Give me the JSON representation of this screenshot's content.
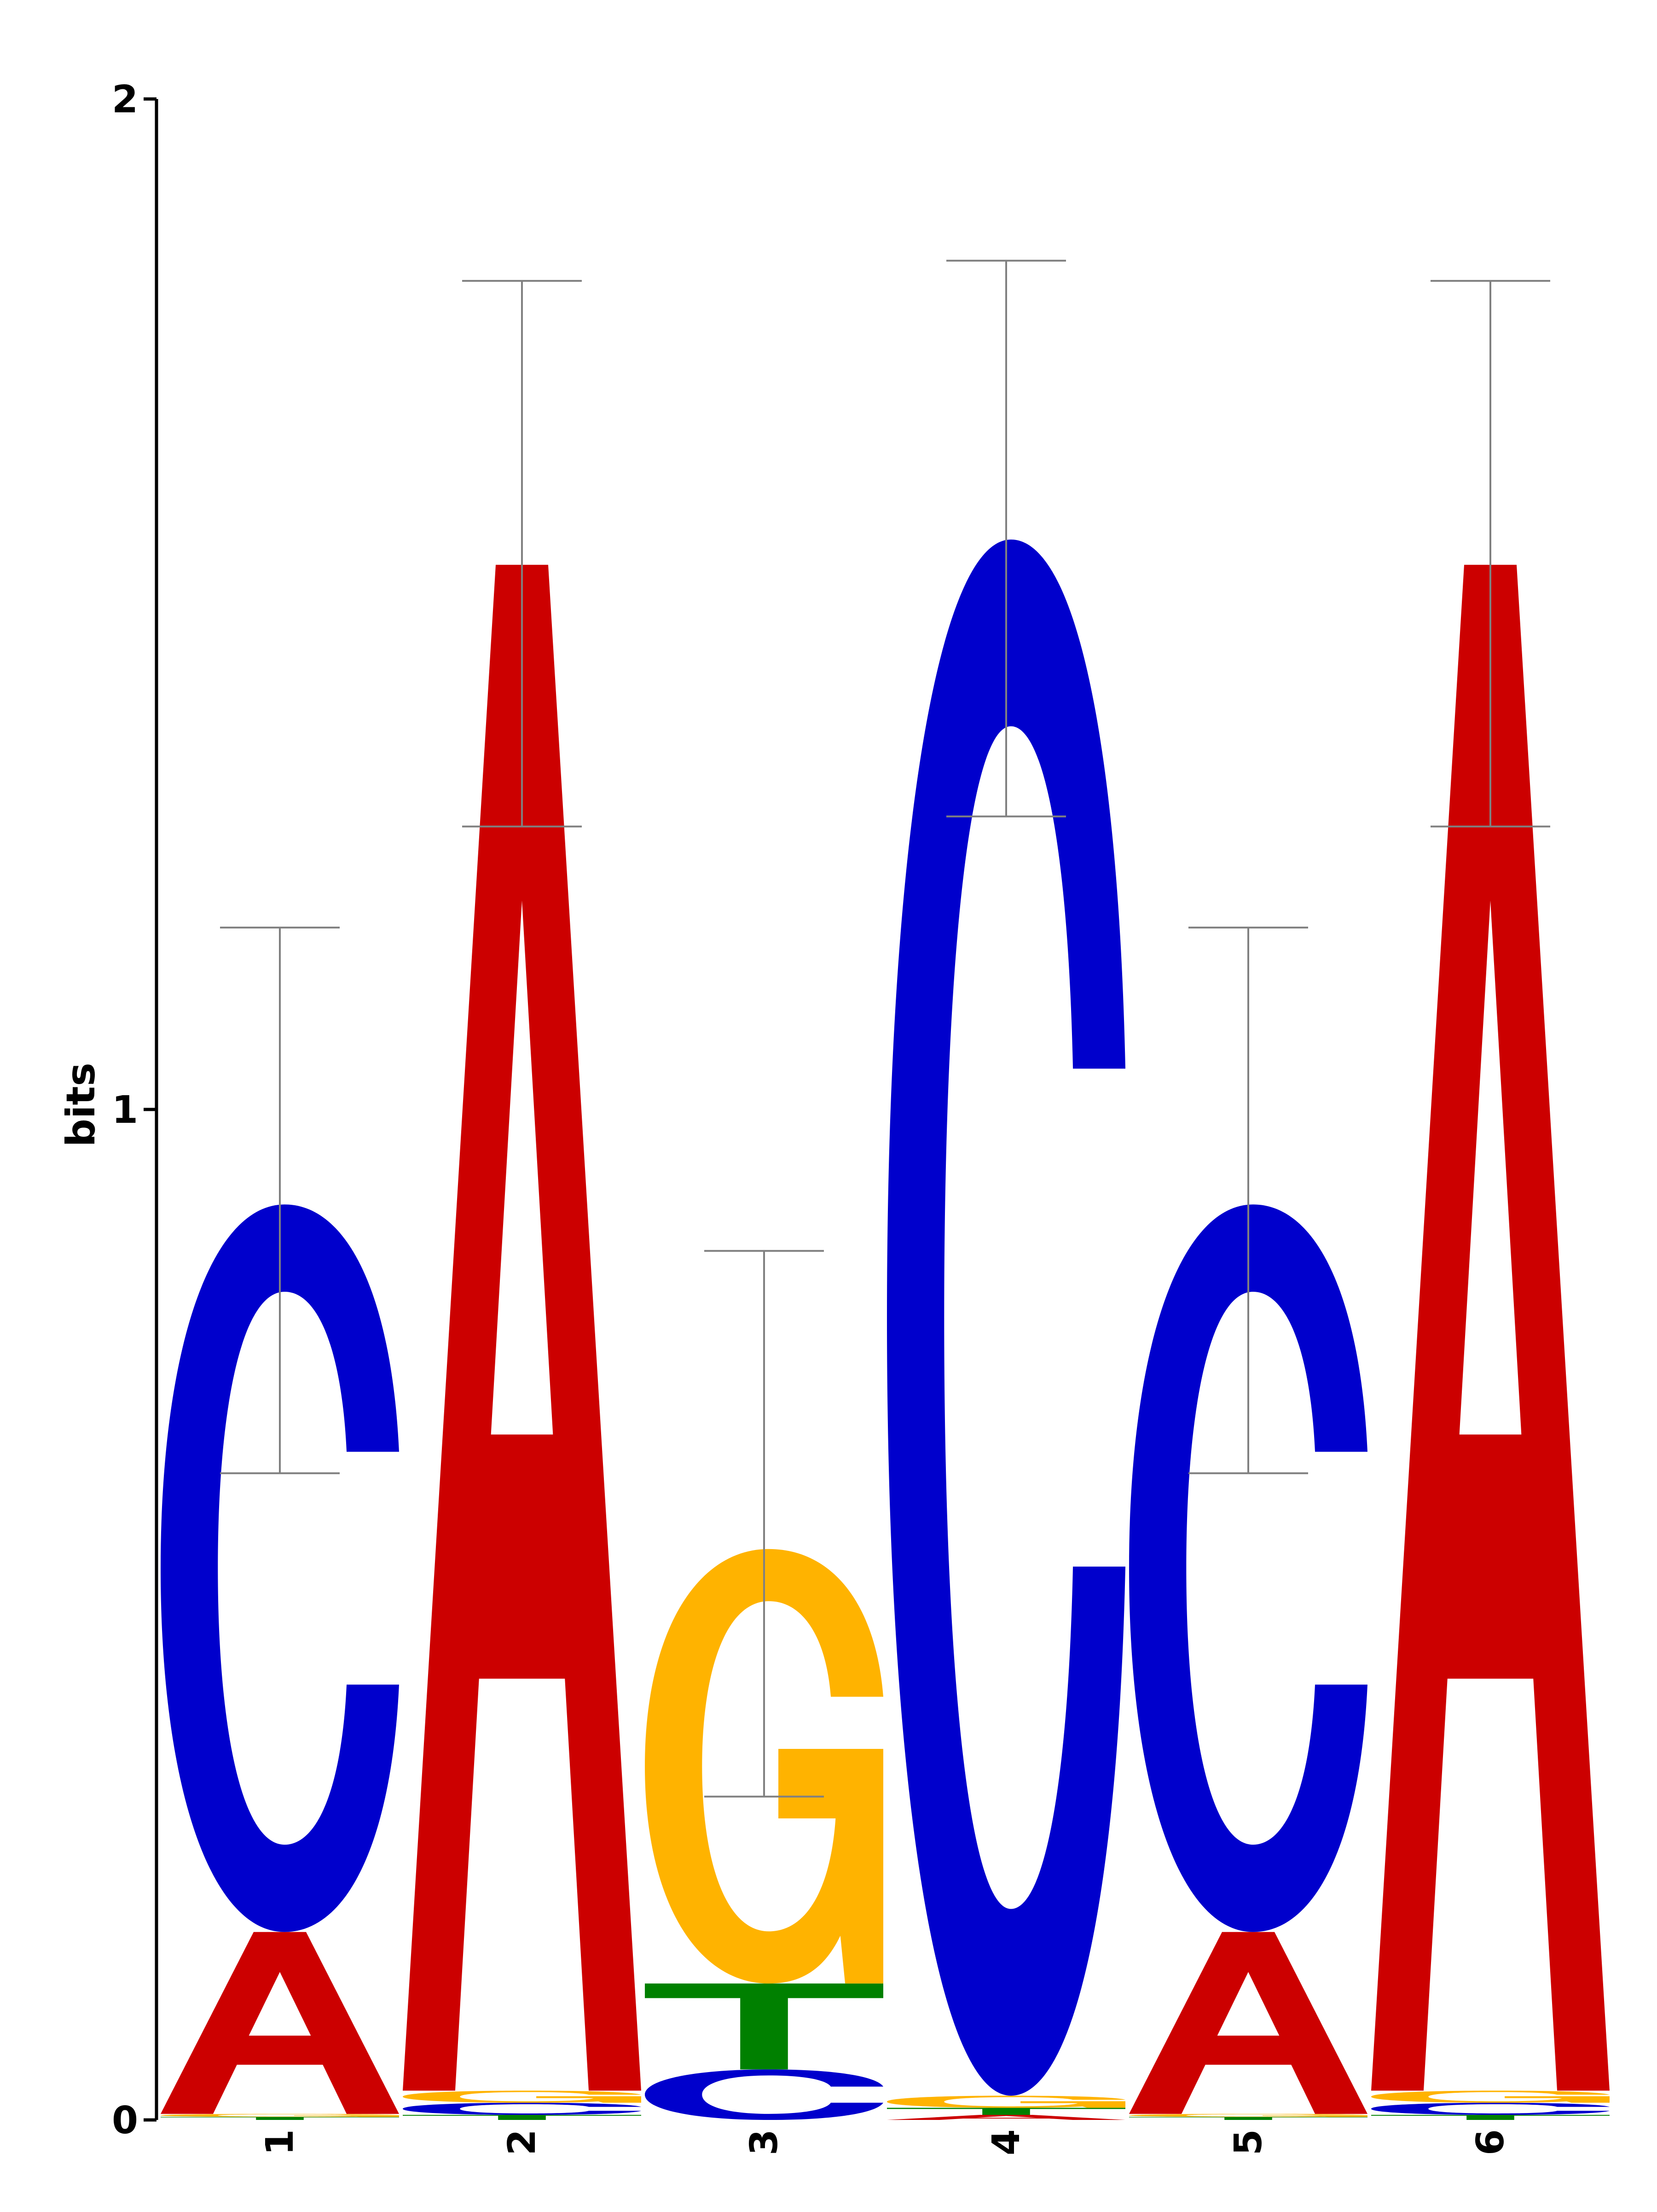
{
  "chart_data": {
    "type": "sequence-logo",
    "title": "",
    "ylabel": "bits",
    "xlabel": "",
    "ylim": [
      0,
      2
    ],
    "yticks": [
      "0",
      "1",
      "2"
    ],
    "positions": [
      "1",
      "2",
      "3",
      "4",
      "5",
      "6"
    ],
    "colors": {
      "A": "#cc0000",
      "C": "#0000cc",
      "G": "#ffb300",
      "T": "#008000"
    },
    "errorbar_color": "#808080",
    "columns": [
      {
        "position": "1",
        "letters": [
          {
            "base": "T",
            "bits": 0.003
          },
          {
            "base": "G",
            "bits": 0.003
          },
          {
            "base": "A",
            "bits": 0.18
          },
          {
            "base": "C",
            "bits": 0.72
          }
        ],
        "error": [
          0.64,
          1.18
        ]
      },
      {
        "position": "2",
        "letters": [
          {
            "base": "T",
            "bits": 0.005
          },
          {
            "base": "C",
            "bits": 0.012
          },
          {
            "base": "G",
            "bits": 0.012
          },
          {
            "base": "A",
            "bits": 1.51
          }
        ],
        "error": [
          1.28,
          1.82
        ]
      },
      {
        "position": "3",
        "letters": [
          {
            "base": "C",
            "bits": 0.05
          },
          {
            "base": "T",
            "bits": 0.085
          },
          {
            "base": "G",
            "bits": 0.43
          }
        ],
        "error": [
          0.32,
          0.86
        ]
      },
      {
        "position": "4",
        "letters": [
          {
            "base": "A",
            "bits": 0.005
          },
          {
            "base": "T",
            "bits": 0.007
          },
          {
            "base": "G",
            "bits": 0.012
          },
          {
            "base": "C",
            "bits": 1.54
          }
        ],
        "error": [
          1.29,
          1.84
        ]
      },
      {
        "position": "5",
        "letters": [
          {
            "base": "T",
            "bits": 0.003
          },
          {
            "base": "G",
            "bits": 0.003
          },
          {
            "base": "A",
            "bits": 0.18
          },
          {
            "base": "C",
            "bits": 0.72
          }
        ],
        "error": [
          0.64,
          1.18
        ]
      },
      {
        "position": "6",
        "letters": [
          {
            "base": "T",
            "bits": 0.005
          },
          {
            "base": "C",
            "bits": 0.012
          },
          {
            "base": "G",
            "bits": 0.012
          },
          {
            "base": "A",
            "bits": 1.51
          }
        ],
        "error": [
          1.28,
          1.82
        ]
      }
    ]
  }
}
